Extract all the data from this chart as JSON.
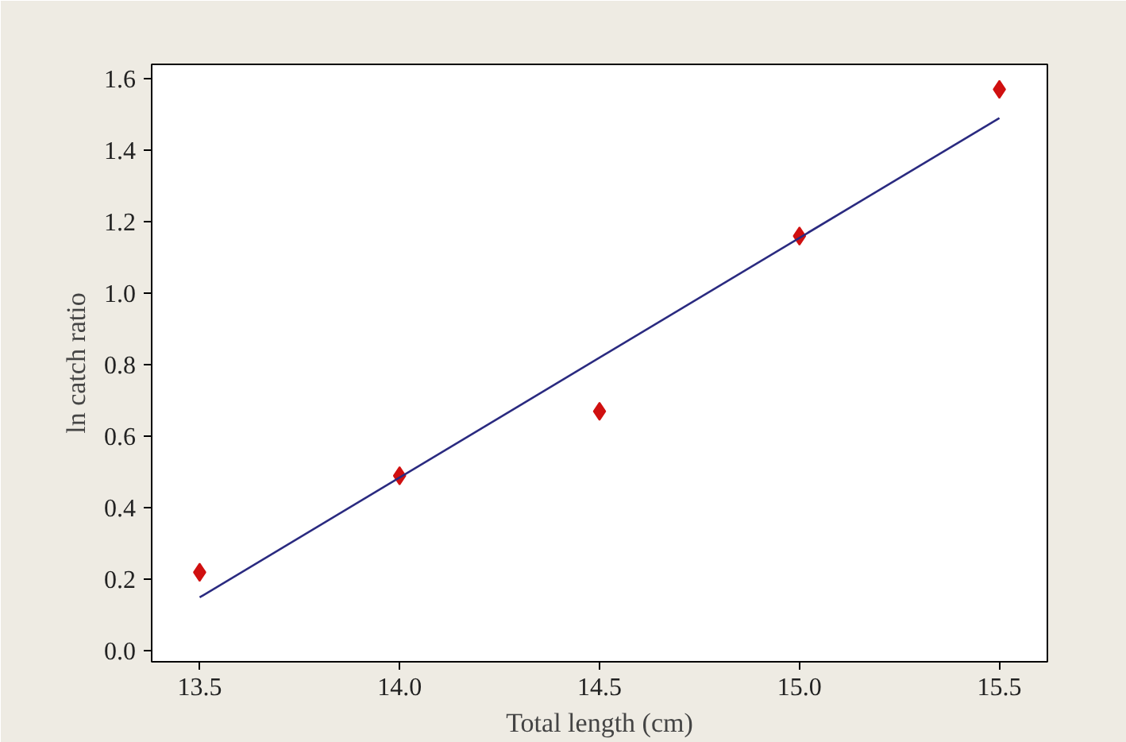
{
  "chart_data": {
    "type": "scatter",
    "xlabel": "Total length (cm)",
    "ylabel": "ln catch ratio",
    "x": [
      13.5,
      14.0,
      14.5,
      15.0,
      15.5
    ],
    "series": [
      {
        "color": "#d01010",
        "marker": "diamond",
        "values": [
          0.22,
          0.49,
          0.67,
          1.16,
          1.57
        ]
      },
      {
        "type": "line",
        "color": "#2a2a80",
        "x": [
          13.5,
          15.5
        ],
        "values": [
          0.15,
          1.49
        ]
      }
    ],
    "xlim": [
      13.38,
      15.62
    ],
    "ylim": [
      -0.03,
      1.64
    ],
    "xticks": [
      {
        "value": 13.5,
        "label": "13.5"
      },
      {
        "value": 14.0,
        "label": "14.0"
      },
      {
        "value": 14.5,
        "label": "14.5"
      },
      {
        "value": 15.0,
        "label": "15.0"
      },
      {
        "value": 15.5,
        "label": "15.5"
      }
    ],
    "yticks": [
      {
        "value": 0.0,
        "label": "0.0"
      },
      {
        "value": 0.2,
        "label": "0.2"
      },
      {
        "value": 0.4,
        "label": "0.4"
      },
      {
        "value": 0.6,
        "label": "0.6"
      },
      {
        "value": 0.8,
        "label": "0.8"
      },
      {
        "value": 1.0,
        "label": "1.0"
      },
      {
        "value": 1.2,
        "label": "1.2"
      },
      {
        "value": 1.4,
        "label": "1.4"
      },
      {
        "value": 1.6,
        "label": "1.6"
      }
    ],
    "grid": false
  }
}
